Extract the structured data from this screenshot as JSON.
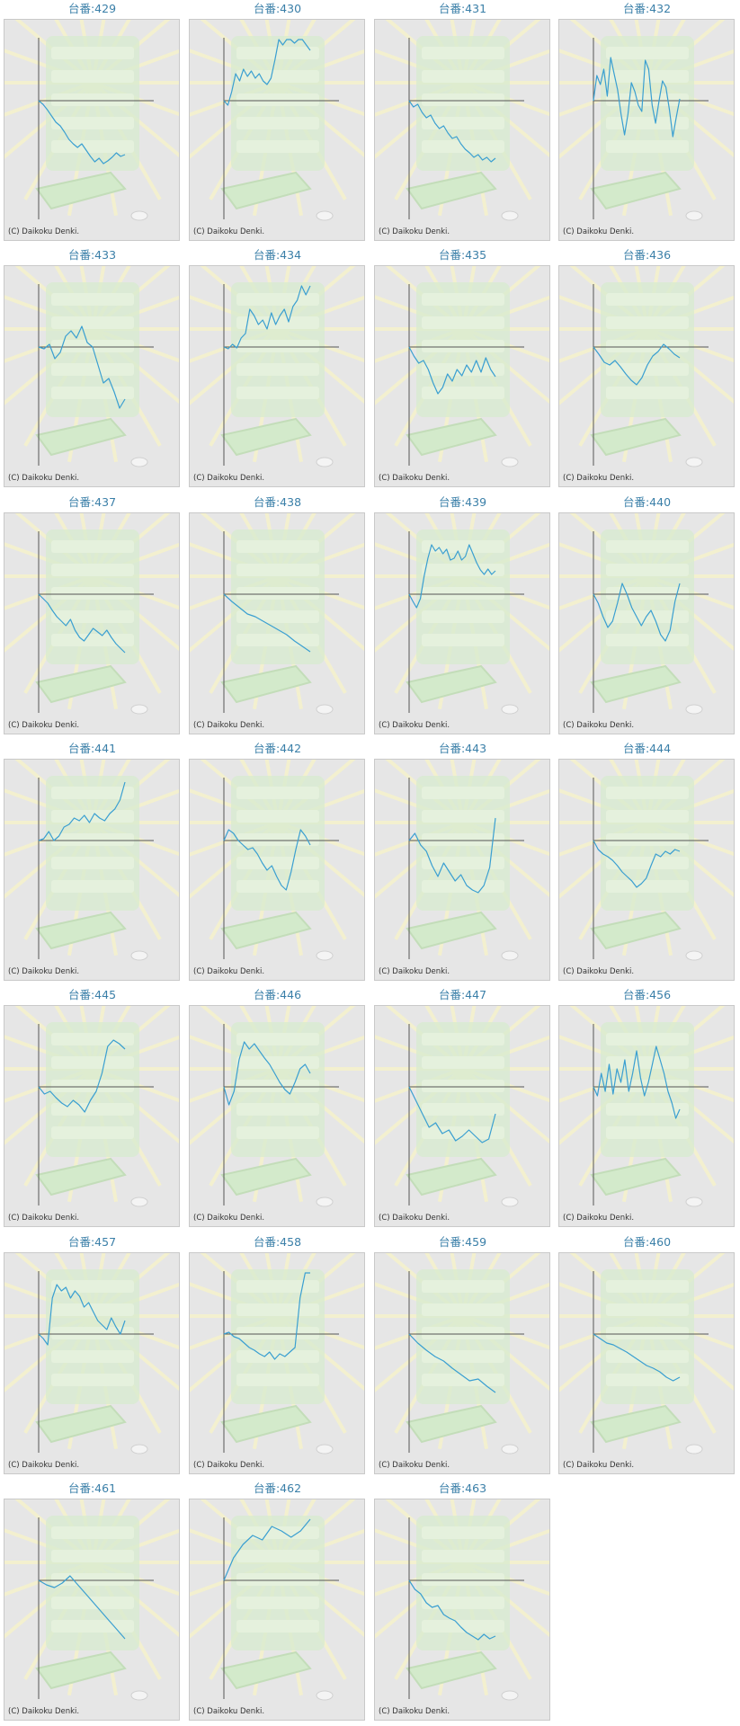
{
  "colors": {
    "line": "#3a9fd1",
    "title": "#3a7fa8",
    "panel_bg": "#e6e6e6",
    "axis": "#555555"
  },
  "chart_data": [
    {
      "type": "line",
      "title": "台番:429",
      "y": [
        0,
        -4,
        -10,
        -17,
        -24,
        -28,
        -35,
        -43,
        -48,
        -52,
        -48,
        -55,
        -62,
        -68,
        -64,
        -70,
        -67,
        -63,
        -58,
        -62,
        -60
      ],
      "copyright": "(C) Daikoku Denki."
    },
    {
      "type": "line",
      "title": "台番:430",
      "y": [
        0,
        -5,
        10,
        30,
        22,
        35,
        27,
        33,
        25,
        30,
        22,
        18,
        25,
        45,
        70,
        62,
        75,
        68,
        64,
        77,
        72,
        62,
        56
      ],
      "copyright": "(C) Daikoku Denki."
    },
    {
      "type": "line",
      "title": "台番:431",
      "y": [
        0,
        -7,
        -4,
        -13,
        -19,
        -16,
        -25,
        -31,
        -28,
        -36,
        -42,
        -40,
        -48,
        -54,
        -58,
        -63,
        -60,
        -66,
        -63,
        -68,
        -64
      ],
      "copyright": "(C) Daikoku Denki."
    },
    {
      "type": "line",
      "title": "台番:432",
      "y": [
        0,
        28,
        18,
        35,
        5,
        48,
        30,
        12,
        -15,
        -38,
        -15,
        20,
        10,
        -5,
        -12,
        45,
        35,
        -5,
        -25,
        0,
        22,
        15,
        -10,
        -40,
        -18,
        2
      ],
      "copyright": "(C) Daikoku Denki."
    },
    {
      "type": "line",
      "title": "台番:433",
      "y": [
        0,
        -2,
        3,
        -13,
        -6,
        12,
        18,
        10,
        23,
        5,
        0,
        -20,
        -40,
        -35,
        -50,
        -68,
        -58
      ],
      "copyright": "(C) Daikoku Denki."
    },
    {
      "type": "line",
      "title": "台番:434",
      "y": [
        0,
        -2,
        3,
        -1,
        10,
        15,
        42,
        35,
        25,
        30,
        20,
        38,
        25,
        35,
        42,
        28,
        45,
        52,
        68,
        58,
        70
      ],
      "copyright": "(C) Daikoku Denki."
    },
    {
      "type": "line",
      "title": "台番:435",
      "y": [
        0,
        -10,
        -18,
        -15,
        -25,
        -40,
        -52,
        -45,
        -30,
        -38,
        -25,
        -32,
        -20,
        -28,
        -15,
        -28,
        -12,
        -25,
        -33
      ],
      "copyright": "(C) Daikoku Denki."
    },
    {
      "type": "line",
      "title": "台番:436",
      "y": [
        0,
        -8,
        -17,
        -20,
        -15,
        -22,
        -30,
        -37,
        -42,
        -34,
        -20,
        -10,
        -5,
        3,
        -2,
        -8,
        -12
      ],
      "copyright": "(C) Daikoku Denki."
    },
    {
      "type": "line",
      "title": "台番:437",
      "y": [
        0,
        -5,
        -10,
        -18,
        -25,
        -30,
        -35,
        -28,
        -40,
        -48,
        -52,
        -45,
        -38,
        -42,
        -46,
        -40,
        -48,
        -55,
        -60,
        -65
      ],
      "copyright": "(C) Daikoku Denki."
    },
    {
      "type": "line",
      "title": "台番:438",
      "y": [
        0,
        -8,
        -15,
        -22,
        -25,
        -30,
        -35,
        -40,
        -45,
        -52,
        -58,
        -64
      ],
      "copyright": "(C) Daikoku Denki."
    },
    {
      "type": "line",
      "title": "台番:439",
      "y": [
        0,
        -8,
        -15,
        -5,
        20,
        40,
        55,
        48,
        52,
        45,
        50,
        38,
        40,
        48,
        38,
        42,
        55,
        45,
        35,
        27,
        22,
        28,
        22,
        26
      ],
      "copyright": "(C) Daikoku Denki."
    },
    {
      "type": "line",
      "title": "台番:440",
      "y": [
        0,
        -10,
        -25,
        -37,
        -30,
        -10,
        12,
        0,
        -15,
        -25,
        -35,
        -25,
        -18,
        -30,
        -45,
        -52,
        -40,
        -8,
        12
      ],
      "copyright": "(C) Daikoku Denki."
    },
    {
      "type": "line",
      "title": "台番:441",
      "y": [
        0,
        2,
        10,
        0,
        5,
        15,
        18,
        25,
        22,
        28,
        20,
        30,
        25,
        22,
        30,
        35,
        45,
        65
      ],
      "copyright": "(C) Daikoku Denki."
    },
    {
      "type": "line",
      "title": "台番:442",
      "y": [
        0,
        12,
        8,
        0,
        -5,
        -10,
        -8,
        -15,
        -25,
        -33,
        -28,
        -40,
        -50,
        -55,
        -35,
        -10,
        12,
        5,
        -5
      ],
      "copyright": "(C) Daikoku Denki."
    },
    {
      "type": "line",
      "title": "台番:443",
      "y": [
        0,
        8,
        -5,
        -12,
        -28,
        -40,
        -25,
        -35,
        -45,
        -38,
        -50,
        -55,
        -58,
        -50,
        -30,
        25
      ],
      "copyright": "(C) Daikoku Denki."
    },
    {
      "type": "line",
      "title": "台番:444",
      "y": [
        0,
        -10,
        -15,
        -18,
        -22,
        -28,
        -35,
        -40,
        -45,
        -52,
        -48,
        -42,
        -28,
        -15,
        -18,
        -12,
        -15,
        -10,
        -12
      ],
      "copyright": "(C) Daikoku Denki."
    },
    {
      "type": "line",
      "title": "台番:445",
      "y": [
        0,
        -8,
        -5,
        -12,
        -18,
        -22,
        -15,
        -20,
        -28,
        -15,
        -5,
        15,
        45,
        52,
        48,
        42
      ],
      "copyright": "(C) Daikoku Denki."
    },
    {
      "type": "line",
      "title": "台番:446",
      "y": [
        0,
        -20,
        -5,
        30,
        50,
        42,
        48,
        40,
        32,
        25,
        15,
        5,
        -3,
        -8,
        5,
        20,
        25,
        15
      ],
      "copyright": "(C) Daikoku Denki."
    },
    {
      "type": "line",
      "title": "台番:447",
      "y": [
        0,
        -15,
        -30,
        -45,
        -40,
        -52,
        -48,
        -60,
        -55,
        -48,
        -55,
        -62,
        -58,
        -30
      ],
      "copyright": "(C) Daikoku Denki."
    },
    {
      "type": "line",
      "title": "台番:456",
      "y": [
        0,
        -10,
        15,
        -5,
        25,
        -8,
        20,
        5,
        30,
        -5,
        15,
        40,
        10,
        -10,
        5,
        25,
        45,
        30,
        15,
        -5,
        -18,
        -35,
        -25
      ],
      "copyright": "(C) Daikoku Denki."
    },
    {
      "type": "line",
      "title": "台番:457",
      "y": [
        0,
        -5,
        -12,
        40,
        55,
        48,
        52,
        40,
        48,
        42,
        30,
        35,
        25,
        15,
        10,
        5,
        18,
        8,
        0,
        15
      ],
      "copyright": "(C) Daikoku Denki."
    },
    {
      "type": "line",
      "title": "台番:458",
      "y": [
        0,
        2,
        -3,
        -5,
        -10,
        -15,
        -18,
        -22,
        -25,
        -20,
        -28,
        -22,
        -25,
        -20,
        -15,
        40,
        80,
        78
      ],
      "copyright": "(C) Daikoku Denki."
    },
    {
      "type": "line",
      "title": "台番:459",
      "y": [
        0,
        -10,
        -18,
        -25,
        -30,
        -38,
        -45,
        -52,
        -50,
        -58,
        -65
      ],
      "copyright": "(C) Daikoku Denki."
    },
    {
      "type": "line",
      "title": "台番:460",
      "y": [
        0,
        -5,
        -10,
        -12,
        -16,
        -20,
        -25,
        -30,
        -35,
        -38,
        -42,
        -48,
        -52,
        -48
      ],
      "copyright": "(C) Daikoku Denki."
    },
    {
      "type": "line",
      "title": "台番:461",
      "y": [
        0,
        -5,
        -8,
        -3,
        5,
        -5,
        -15,
        -25,
        -35,
        -45,
        -55,
        -65
      ],
      "copyright": "(C) Daikoku Denki."
    },
    {
      "type": "line",
      "title": "台番:462",
      "y": [
        0,
        25,
        40,
        50,
        45,
        60,
        55,
        48,
        55,
        70
      ],
      "copyright": "(C) Daikoku Denki."
    },
    {
      "type": "line",
      "title": "台番:463",
      "y": [
        0,
        -10,
        -15,
        -25,
        -30,
        -28,
        -38,
        -42,
        -45,
        -52,
        -58,
        -62,
        -66,
        -60,
        -65,
        -62
      ],
      "copyright": "(C) Daikoku Denki."
    }
  ]
}
